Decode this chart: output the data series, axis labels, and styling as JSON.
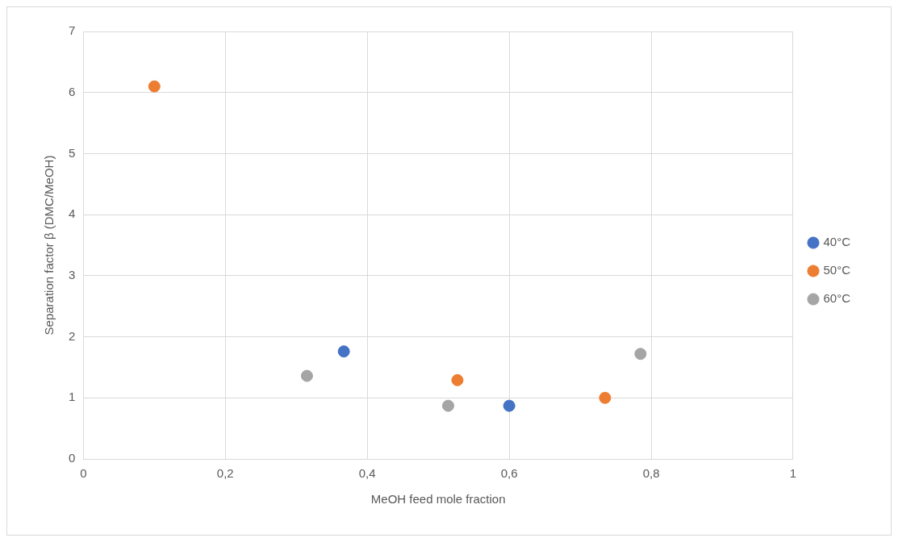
{
  "chart_data": {
    "type": "scatter",
    "xlabel": "MeOH feed mole fraction",
    "ylabel": "Separation factor β (DMC/MeOH)",
    "xlim": [
      0,
      1
    ],
    "xticks": [
      0,
      {
        "value": 0.2,
        "label": "0,2"
      },
      {
        "value": 0.4,
        "label": "0,4"
      },
      {
        "value": 0.6,
        "label": "0,6"
      },
      {
        "value": 0.8,
        "label": "0,8"
      },
      1
    ],
    "ylim": [
      0,
      7
    ],
    "yticks": [
      0,
      1,
      2,
      3,
      4,
      5,
      6,
      7
    ],
    "grid": true,
    "legend": "right",
    "marker": "circle",
    "series": [
      {
        "name": "40°C",
        "color": "#4472c4",
        "x": [
          0.367,
          0.6
        ],
        "values": [
          1.76,
          0.87
        ]
      },
      {
        "name": "50°C",
        "color": "#ed7d31",
        "x": [
          0.1,
          0.527,
          0.735
        ],
        "values": [
          6.1,
          1.29,
          1.0
        ]
      },
      {
        "name": "60°C",
        "color": "#a5a5a5",
        "x": [
          0.315,
          0.514,
          0.785
        ],
        "values": [
          1.36,
          0.87,
          1.72
        ]
      }
    ]
  }
}
